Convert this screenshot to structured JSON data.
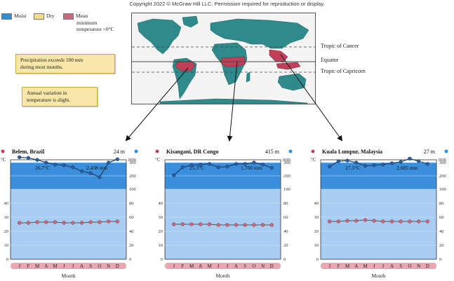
{
  "copyright": "Copyright 2022 © McGraw Hill LLC. Permission required for reproduction or display.",
  "legend": {
    "moist": "Moist",
    "dry": "Dry",
    "mean_line1": "Mean",
    "mean_line2": "minimum",
    "mean_line3": "temperature >0°C",
    "colors": {
      "moist": "#2e8fd8",
      "dry": "#f2de8c",
      "mean": "#c96a7e"
    }
  },
  "callouts": {
    "precip_line1": "Precipitation exceeds 100 mm",
    "precip_line2": "during most months.",
    "annual_line1": "Annual variation in",
    "annual_line2": "temperature is slight."
  },
  "map_labels": {
    "tropic_cancer": "Tropic of Cancer",
    "equator": "Equator",
    "tropic_capricorn": "Tropic of Capricorn"
  },
  "climographs": [
    {
      "station": "Belem, Brazil",
      "elevation": "24 m",
      "mean_temp": "26.7°C",
      "annual_precip": "2,438 mm",
      "precip": [
        340,
        340,
        335,
        320,
        300,
        285,
        280,
        265,
        235,
        220,
        190,
        300,
        325
      ],
      "temp": [
        26,
        26,
        26,
        26.5,
        26.5,
        26.5,
        26,
        26,
        26,
        26.5,
        26.5,
        27,
        27
      ]
    },
    {
      "station": "Kisangani, DR Congo",
      "elevation": "415 m",
      "mean_temp": "25.3°C",
      "annual_precip": "1,760 mm",
      "precip": [
        235,
        205,
        265,
        280,
        285,
        290,
        265,
        270,
        290,
        290,
        300,
        285,
        260
      ],
      "temp": [
        25,
        25,
        25,
        25,
        25,
        25,
        24.5,
        24.5,
        24.5,
        24.5,
        24.5,
        24.5,
        24.5
      ]
    },
    {
      "station": "Kuala Lumpur, Malaysia",
      "elevation": "27 m",
      "mean_temp": "27.5°C",
      "annual_precip": "2,685 mm",
      "precip": [
        285,
        270,
        310,
        315,
        300,
        275,
        280,
        285,
        295,
        305,
        330,
        310,
        290
      ],
      "temp": [
        27,
        27,
        27,
        27.5,
        27.5,
        28,
        27.5,
        27,
        27,
        27,
        27,
        27,
        27
      ]
    }
  ],
  "axis": {
    "months": [
      "J",
      "F",
      "M",
      "A",
      "M",
      "J",
      "J",
      "A",
      "S",
      "O",
      "N",
      "D"
    ],
    "xlabel": "Month",
    "ylabel_left": "°C",
    "ylabel_right": "mm",
    "temp_ticks": [
      "0",
      "10",
      "20",
      "30",
      "40"
    ],
    "precip_ticks": [
      "0",
      "20",
      "40",
      "60",
      "80",
      "100",
      "200",
      "300"
    ]
  },
  "chart_data": [
    {
      "type": "line",
      "title": "Belem, Brazil",
      "x": [
        "J",
        "F",
        "M",
        "A",
        "M",
        "J",
        "J",
        "A",
        "S",
        "O",
        "N",
        "D"
      ],
      "series": [
        {
          "values": [
            340,
            335,
            320,
            300,
            285,
            280,
            265,
            235,
            220,
            190,
            300,
            325
          ]
        },
        {
          "values": [
            26,
            26,
            26.5,
            26.5,
            26.5,
            26,
            26,
            26,
            26.5,
            26.5,
            27,
            27
          ]
        }
      ],
      "xlabel": "Month",
      "ylabel": "°C / mm"
    },
    {
      "type": "line",
      "title": "Kisangani, DR Congo",
      "x": [
        "J",
        "F",
        "M",
        "A",
        "M",
        "J",
        "J",
        "A",
        "S",
        "O",
        "N",
        "D"
      ],
      "series": [
        {
          "values": [
            205,
            265,
            280,
            285,
            290,
            265,
            270,
            290,
            290,
            300,
            285,
            260
          ]
        },
        {
          "values": [
            25,
            25,
            25,
            25,
            25,
            24.5,
            24.5,
            24.5,
            24.5,
            24.5,
            24.5,
            24.5
          ]
        }
      ],
      "xlabel": "Month",
      "ylabel": "°C / mm"
    },
    {
      "type": "line",
      "title": "Kuala Lumpur, Malaysia",
      "x": [
        "J",
        "F",
        "M",
        "A",
        "M",
        "J",
        "J",
        "A",
        "S",
        "O",
        "N",
        "D"
      ],
      "series": [
        {
          "values": [
            270,
            310,
            315,
            300,
            275,
            280,
            285,
            295,
            305,
            330,
            310,
            290
          ]
        },
        {
          "values": [
            27,
            27,
            27.5,
            27.5,
            28,
            27.5,
            27,
            27,
            27,
            27,
            27,
            27
          ]
        }
      ],
      "xlabel": "Month",
      "ylabel": "°C / mm"
    }
  ]
}
